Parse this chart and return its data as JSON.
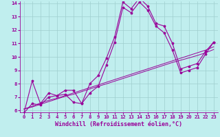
{
  "xlabel": "Windchill (Refroidissement éolien,°C)",
  "bg_color": "#c0eeee",
  "line_color": "#990099",
  "marker": "*",
  "x_data": [
    0,
    1,
    2,
    3,
    4,
    5,
    6,
    7,
    8,
    9,
    10,
    11,
    12,
    13,
    14,
    15,
    16,
    17,
    18,
    19,
    20,
    21,
    22,
    23
  ],
  "y_temp": [
    5.8,
    8.2,
    6.5,
    7.3,
    7.1,
    7.5,
    7.5,
    6.5,
    8.0,
    8.6,
    9.9,
    11.5,
    14.1,
    13.6,
    14.4,
    13.8,
    12.5,
    12.3,
    11.0,
    9.1,
    9.3,
    9.5,
    10.4,
    11.1
  ],
  "y_feel": [
    5.8,
    6.5,
    6.4,
    7.0,
    7.1,
    7.2,
    6.6,
    6.5,
    7.3,
    7.8,
    9.4,
    11.1,
    13.7,
    13.3,
    14.1,
    13.5,
    12.3,
    11.8,
    10.5,
    8.8,
    9.0,
    9.2,
    10.2,
    11.1
  ],
  "y_line1": [
    6.1,
    6.3,
    6.55,
    6.75,
    6.9,
    7.1,
    7.3,
    7.5,
    7.7,
    7.9,
    8.1,
    8.3,
    8.5,
    8.7,
    8.9,
    9.1,
    9.3,
    9.5,
    9.7,
    9.9,
    10.1,
    10.3,
    10.5,
    10.75
  ],
  "y_line2": [
    6.1,
    6.25,
    6.45,
    6.65,
    6.85,
    7.05,
    7.2,
    7.4,
    7.6,
    7.8,
    7.98,
    8.18,
    8.38,
    8.58,
    8.78,
    8.98,
    9.18,
    9.38,
    9.58,
    9.75,
    9.92,
    10.1,
    10.3,
    10.55
  ],
  "ylim": [
    6,
    14
  ],
  "xlim": [
    -0.5,
    23.5
  ],
  "yticks": [
    6,
    7,
    8,
    9,
    10,
    11,
    12,
    13,
    14
  ],
  "xticks": [
    0,
    1,
    2,
    3,
    4,
    5,
    6,
    7,
    8,
    9,
    10,
    11,
    12,
    13,
    14,
    15,
    16,
    17,
    18,
    19,
    20,
    21,
    22,
    23
  ],
  "grid_color": "#9ecece",
  "font_color": "#990099",
  "label_fontsize": 6.0,
  "tick_fontsize": 5.2
}
